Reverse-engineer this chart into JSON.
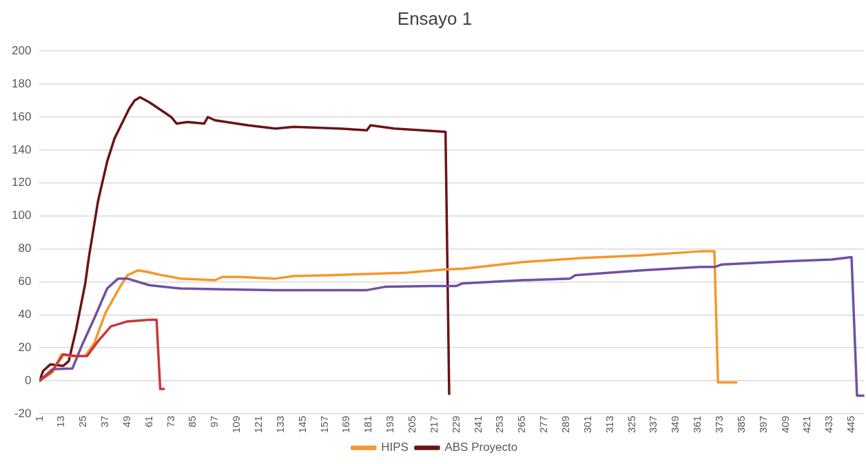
{
  "chart_data": {
    "type": "line",
    "title": "Ensayo 1",
    "marker": "none",
    "line_style": "solid",
    "grid": "y",
    "legend": "bottom",
    "xlim": [
      1,
      452
    ],
    "xticks": [
      1,
      13,
      25,
      37,
      49,
      61,
      73,
      85,
      97,
      109,
      121,
      133,
      145,
      157,
      169,
      181,
      193,
      205,
      217,
      229,
      241,
      253,
      265,
      277,
      289,
      301,
      313,
      325,
      337,
      349,
      361,
      373,
      385,
      397,
      409,
      421,
      433,
      445
    ],
    "ylim": [
      -20,
      200
    ],
    "yticks": [
      -20,
      0,
      20,
      40,
      60,
      80,
      100,
      120,
      140,
      160,
      180,
      200
    ],
    "series": [
      {
        "color": "#c8383a",
        "x": [
          1,
          8,
          14,
          21,
          27,
          33,
          40,
          49,
          61,
          65,
          67,
          69
        ],
        "values": [
          0,
          6,
          16,
          15,
          15,
          24,
          33,
          36,
          37,
          37,
          -5,
          -5
        ]
      },
      {
        "color": "#7050a2",
        "x": [
          1,
          8,
          19,
          24,
          31,
          38,
          44,
          49,
          61,
          78,
          101,
          130,
          180,
          190,
          215,
          229,
          232,
          265,
          291,
          294,
          330,
          362,
          370,
          374,
          410,
          434,
          445,
          448,
          452
        ],
        "values": [
          0,
          7,
          7.5,
          21,
          38,
          56,
          62,
          62,
          58,
          56,
          55.5,
          55,
          55,
          57,
          57.5,
          57.5,
          59,
          61,
          62,
          64,
          67,
          69,
          69,
          70.5,
          72.5,
          73.5,
          75,
          -9,
          -9
        ]
      },
      {
        "name": "HIPS",
        "color": "#f7962a",
        "x": [
          1,
          8,
          13,
          18,
          26,
          31,
          37,
          44,
          49,
          55,
          60,
          68,
          78,
          97,
          101,
          110,
          130,
          140,
          160,
          185,
          201,
          222,
          233,
          265,
          298,
          330,
          362,
          370,
          372,
          382
        ],
        "values": [
          0,
          5,
          16,
          15,
          15,
          23,
          41,
          55,
          64,
          67,
          66,
          64,
          62,
          61,
          63,
          63,
          62,
          63.5,
          64,
          65,
          65.5,
          67.5,
          68,
          72,
          74.5,
          76,
          78.5,
          78.5,
          -1,
          -1
        ]
      },
      {
        "name": "ABS Proyecto",
        "color": "#6b1416",
        "x": [
          1,
          3,
          7,
          14,
          17,
          21,
          26,
          28,
          33,
          38,
          42,
          50,
          53,
          56,
          61,
          69,
          73,
          76,
          82,
          91,
          93,
          97,
          115,
          130,
          140,
          165,
          180,
          182,
          195,
          210,
          223,
          225
        ],
        "values": [
          0,
          6,
          10,
          9,
          12,
          31,
          59,
          75,
          109,
          133,
          147,
          165,
          170,
          172,
          169,
          163,
          160,
          156,
          157,
          156,
          160,
          158,
          155,
          153,
          154,
          153,
          152,
          155,
          153,
          152,
          151,
          -8
        ]
      }
    ]
  }
}
